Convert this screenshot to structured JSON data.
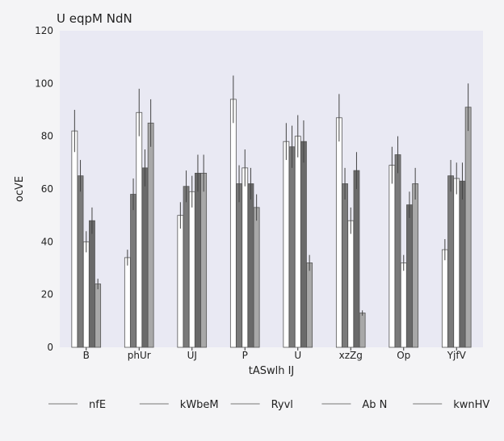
{
  "chart_data": {
    "type": "bar",
    "title": "U eqpM NdN",
    "xlabel": "tASwlh IJ",
    "ylabel": "ocVE",
    "ylim": [
      0,
      120
    ],
    "yticks": [
      0,
      20,
      40,
      60,
      80,
      100,
      120
    ],
    "categories": [
      "B",
      "phUr",
      "UJ",
      "P",
      "U",
      "xzZg",
      "Op",
      "YjfV"
    ],
    "series": [
      {
        "name": "nfE",
        "color": "#ffffff",
        "values": [
          82,
          34,
          50,
          94,
          78,
          87,
          69,
          37
        ],
        "errors": [
          8,
          3,
          5,
          9,
          7,
          9,
          7,
          4
        ]
      },
      {
        "name": "kWbeM",
        "color": "#7a7a7a",
        "values": [
          65,
          58,
          61,
          62,
          76,
          62,
          73,
          65
        ],
        "errors": [
          6,
          6,
          6,
          7,
          8,
          6,
          7,
          6
        ]
      },
      {
        "name": "Ryvl",
        "color": "#ffffff",
        "values": [
          40,
          89,
          59,
          68,
          80,
          48,
          32,
          64
        ],
        "errors": [
          4,
          9,
          6,
          7,
          8,
          5,
          3,
          6
        ]
      },
      {
        "name": "Ab N",
        "color": "#6a6a6a",
        "values": [
          48,
          68,
          66,
          62,
          78,
          67,
          54,
          63
        ],
        "errors": [
          5,
          7,
          7,
          6,
          8,
          7,
          5,
          7
        ]
      },
      {
        "name": "kwnHV",
        "color": "#a8a8a8",
        "values": [
          24,
          85,
          66,
          53,
          32,
          13,
          62,
          91
        ],
        "errors": [
          2,
          9,
          7,
          5,
          3,
          1,
          6,
          9
        ]
      }
    ],
    "grid": false,
    "legend_position": "bottom"
  }
}
